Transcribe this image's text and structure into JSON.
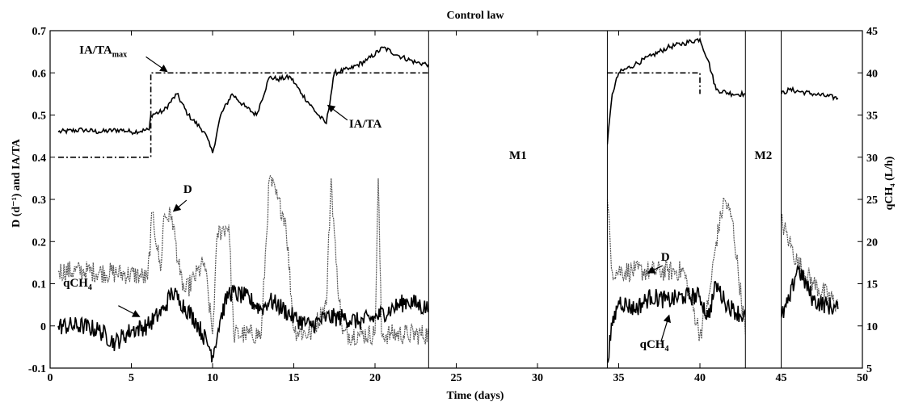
{
  "chart_data": {
    "type": "line",
    "title": "Control law",
    "xlabel": "Time (days)",
    "ylabel_left": "D (d⁻¹) and IA/TA",
    "ylabel_right": "qCH₄ (L/h)",
    "xlim": [
      0,
      50
    ],
    "ylim_left": [
      -0.1,
      0.7
    ],
    "ylim_right": [
      5,
      45
    ],
    "x_ticks": [
      "0",
      "5",
      "10",
      "15",
      "20",
      "25",
      "30",
      "35",
      "40",
      "45",
      "50"
    ],
    "y_left_ticks": [
      "-0.1",
      "0",
      "0.1",
      "0.2",
      "0.3",
      "0.4",
      "0.5",
      "0.6",
      "0.7"
    ],
    "y_right_ticks": [
      "5",
      "10",
      "15",
      "20",
      "25",
      "30",
      "35",
      "40",
      "45"
    ],
    "grid": false,
    "missing_periods": [
      {
        "label": "M1",
        "x": [
          23.3,
          34.3
        ]
      },
      {
        "label": "M2",
        "x": [
          42.8,
          45
        ]
      }
    ],
    "series": [
      {
        "name": "IA/TAmax",
        "axis": "left",
        "style": "dash-dot",
        "color": "#000000",
        "x": [
          0.5,
          6.2,
          6.2,
          23.3,
          34.3,
          40,
          40,
          48.5
        ],
        "y": [
          0.4,
          0.4,
          0.6,
          0.6,
          0.6,
          0.6,
          0.55,
          0.55
        ]
      },
      {
        "name": "IA/TA",
        "axis": "left",
        "style": "solid",
        "color": "#000000",
        "x": [
          0.5,
          2,
          3,
          4.3,
          5,
          6.1,
          6.2,
          7,
          7.8,
          8.5,
          9.5,
          10,
          10.5,
          11.2,
          12,
          12.7,
          13.5,
          14,
          14.8,
          15.5,
          16.5,
          17,
          17.5,
          18.5,
          19.5,
          20.5,
          21.5,
          22.5,
          23.3,
          34.3,
          34.6,
          35,
          36,
          37,
          38,
          39,
          40,
          40.5,
          41,
          42,
          42.8,
          45,
          45.5,
          47,
          48.5
        ],
        "y": [
          0.46,
          0.465,
          0.46,
          0.465,
          0.46,
          0.465,
          0.5,
          0.51,
          0.55,
          0.5,
          0.46,
          0.41,
          0.5,
          0.55,
          0.52,
          0.5,
          0.59,
          0.585,
          0.59,
          0.55,
          0.5,
          0.48,
          0.6,
          0.61,
          0.63,
          0.66,
          0.64,
          0.625,
          0.62,
          0.43,
          0.55,
          0.6,
          0.62,
          0.64,
          0.66,
          0.67,
          0.68,
          0.63,
          0.56,
          0.55,
          0.55,
          0.55,
          0.56,
          0.55,
          0.54
        ]
      },
      {
        "name": "D",
        "axis": "left",
        "style": "dotted-noisy",
        "color": "#555555",
        "x": [
          0.5,
          2,
          4,
          5.5,
          6,
          6.3,
          6.8,
          7,
          7.5,
          8,
          8.3,
          9.5,
          10,
          10.3,
          11,
          11.3,
          12,
          13,
          13.5,
          14,
          14.5,
          15,
          16,
          17,
          17.3,
          17.6,
          18,
          19,
          20,
          20.2,
          20.4,
          21,
          22,
          23.3,
          34.3,
          34.6,
          35,
          36,
          37,
          38,
          39,
          40,
          40.5,
          41,
          41.5,
          42,
          42.8,
          45,
          45.5,
          46,
          47,
          48.5
        ],
        "y": [
          0.13,
          0.13,
          0.125,
          0.12,
          0.11,
          0.27,
          0.13,
          0.26,
          0.26,
          0.12,
          0.08,
          0.15,
          -0.02,
          0.22,
          0.24,
          -0.02,
          -0.02,
          -0.02,
          0.35,
          0.3,
          0.25,
          -0.01,
          -0.02,
          0.05,
          0.35,
          0.15,
          -0.02,
          -0.02,
          -0.02,
          0.35,
          -0.02,
          -0.02,
          -0.02,
          -0.02,
          0.3,
          0.13,
          0.13,
          0.13,
          0.13,
          0.13,
          0.13,
          -0.02,
          0.05,
          0.2,
          0.3,
          0.25,
          -0.02,
          0.25,
          0.2,
          0.15,
          0.1,
          0.05
        ]
      },
      {
        "name": "qCH4",
        "axis": "right",
        "style": "solid-noisy",
        "color": "#000000",
        "x": [
          0.5,
          2,
          3,
          4,
          5,
          6,
          7,
          7.5,
          8,
          9,
          9.8,
          10,
          10.5,
          11,
          12,
          13,
          13.5,
          14,
          15,
          16,
          17,
          18,
          19,
          20,
          21,
          22,
          23.3,
          34.3,
          34.6,
          35,
          36,
          37,
          38,
          39,
          40,
          40.5,
          41,
          41.5,
          42,
          42.8,
          45,
          45.5,
          46,
          47,
          48.5
        ],
        "y": [
          10,
          10,
          9.5,
          8,
          9.5,
          10,
          12,
          14,
          13,
          10.5,
          7.5,
          6.5,
          11,
          14,
          13.5,
          12,
          13,
          12.5,
          11,
          10,
          11,
          11,
          10.5,
          11,
          12,
          13,
          12,
          6,
          10,
          13,
          12,
          13.5,
          13,
          13.5,
          13.5,
          11,
          15,
          13,
          12,
          11,
          11,
          13,
          17,
          13,
          12
        ]
      }
    ]
  },
  "annotations": [
    {
      "label": "IA/TA",
      "subscript": "max"
    },
    {
      "label": "IA/TA",
      "subscript": ""
    },
    {
      "label": "D",
      "subscript": ""
    },
    {
      "label": "qCH",
      "subscript": "4"
    },
    {
      "label": "D",
      "subscript": ""
    },
    {
      "label": "qCH",
      "subscript": "4"
    }
  ]
}
